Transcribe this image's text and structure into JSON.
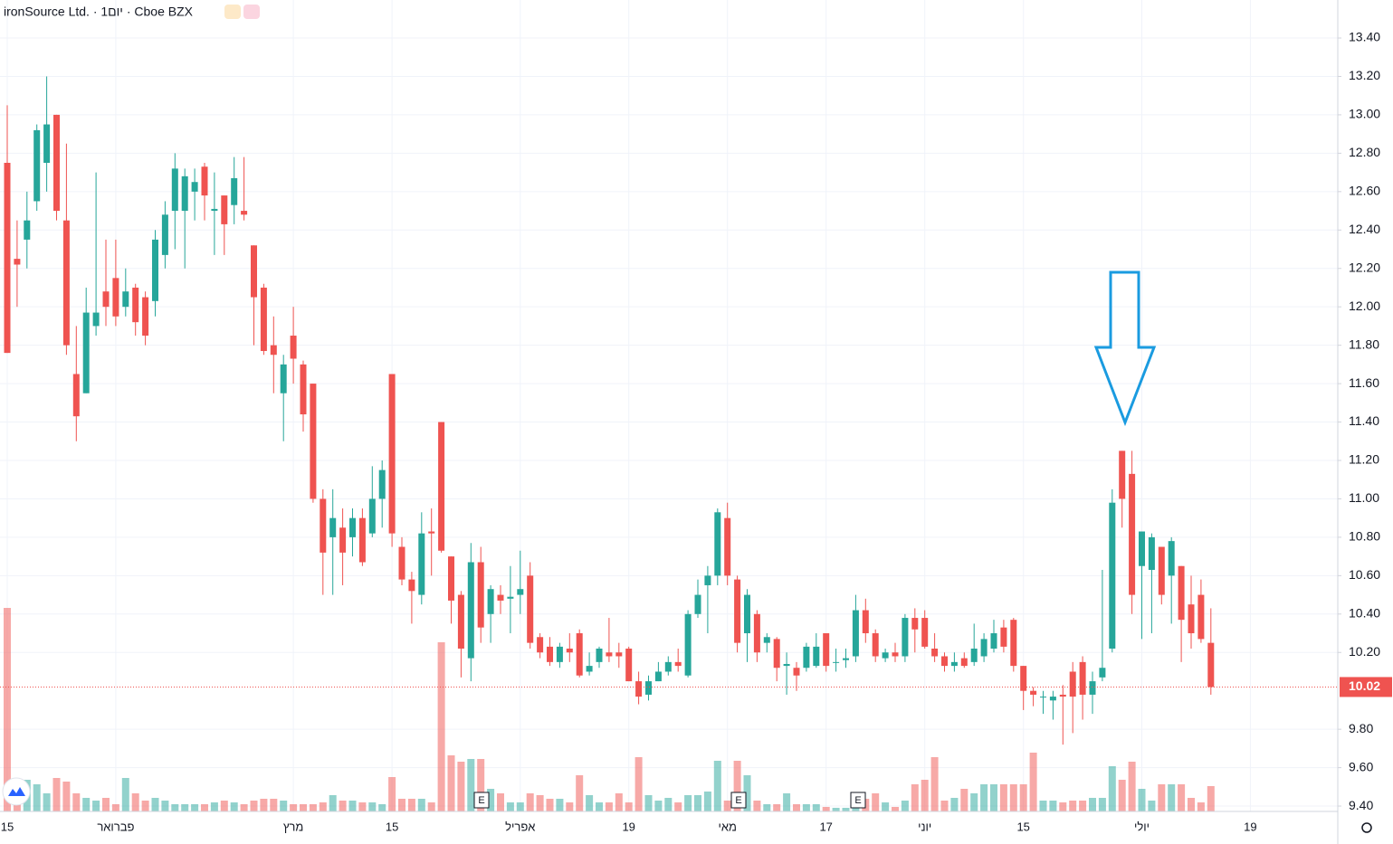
{
  "chart_data": {
    "type": "candlestick",
    "title": "ironSource Ltd. · 1יום · Cboe BZX",
    "up_color": "#26a69a",
    "down_color": "#ef5350",
    "grid": true,
    "ylim": [
      9.372,
      13.598
    ],
    "yticks": [
      {
        "value": 9.4,
        "label": "9.40"
      },
      {
        "value": 9.6,
        "label": "9.60"
      },
      {
        "value": 9.8,
        "label": "9.80"
      },
      {
        "value": 10.2,
        "label": "10.20"
      },
      {
        "value": 10.4,
        "label": "10.40"
      },
      {
        "value": 10.6,
        "label": "10.60"
      },
      {
        "value": 10.8,
        "label": "10.80"
      },
      {
        "value": 11.0,
        "label": "11.00"
      },
      {
        "value": 11.2,
        "label": "11.20"
      },
      {
        "value": 11.4,
        "label": "11.40"
      },
      {
        "value": 11.6,
        "label": "11.60"
      },
      {
        "value": 11.8,
        "label": "11.80"
      },
      {
        "value": 12.0,
        "label": "12.00"
      },
      {
        "value": 12.2,
        "label": "12.20"
      },
      {
        "value": 12.4,
        "label": "12.40"
      },
      {
        "value": 12.6,
        "label": "12.60"
      },
      {
        "value": 12.8,
        "label": "12.80"
      },
      {
        "value": 13.0,
        "label": "13.00"
      },
      {
        "value": 13.2,
        "label": "13.20"
      },
      {
        "value": 13.4,
        "label": "13.40"
      }
    ],
    "last_price": 10.02,
    "events": [
      "E",
      "E",
      "E"
    ],
    "categories": [
      "15",
      null,
      null,
      null,
      null,
      null,
      null,
      null,
      null,
      null,
      null,
      "פברואר",
      null,
      null,
      null,
      null,
      null,
      null,
      null,
      null,
      null,
      null,
      null,
      null,
      null,
      null,
      null,
      null,
      null,
      "מרץ",
      null,
      null,
      null,
      null,
      null,
      null,
      null,
      null,
      null,
      "15",
      null,
      null,
      null,
      null,
      null,
      null,
      null,
      null,
      null,
      null,
      null,
      null,
      "אפריל",
      null,
      null,
      null,
      null,
      null,
      null,
      null,
      null,
      null,
      null,
      "19",
      null,
      null,
      null,
      null,
      null,
      null,
      null,
      null,
      null,
      "מאי",
      null,
      null,
      null,
      null,
      null,
      null,
      null,
      null,
      null,
      "17",
      null,
      null,
      null,
      null,
      null,
      null,
      null,
      null,
      null,
      "יוני",
      null,
      null,
      null,
      null,
      null,
      null,
      null,
      null,
      null,
      "15",
      null,
      null,
      null,
      null,
      null,
      null,
      null,
      null,
      null,
      null,
      null,
      "יולי",
      null,
      null,
      null,
      null,
      null,
      null,
      null,
      null,
      null,
      null,
      "19"
    ],
    "open": [
      12.75,
      12.25,
      12.35,
      12.55,
      12.75,
      13.0,
      12.45,
      11.65,
      11.55,
      11.9,
      12.08,
      12.15,
      12.0,
      12.1,
      12.05,
      12.03,
      12.27,
      12.5,
      12.5,
      12.6,
      12.73,
      12.5,
      12.58,
      12.53,
      12.5,
      12.32,
      12.1,
      11.8,
      11.55,
      11.85,
      11.7,
      11.6,
      11.0,
      10.8,
      10.85,
      10.8,
      10.9,
      10.82,
      11.0,
      11.65,
      10.75,
      10.58,
      10.5,
      10.83,
      11.4,
      10.7,
      10.5,
      10.17,
      10.67,
      10.4,
      10.5,
      10.48,
      10.5,
      10.6,
      10.28,
      10.23,
      10.15,
      10.22,
      10.3,
      10.1,
      10.15,
      10.2,
      10.2,
      10.22,
      10.05,
      9.98,
      10.05,
      10.1,
      10.15,
      10.08,
      10.4,
      10.55,
      10.6,
      10.9,
      10.58,
      10.3,
      10.4,
      10.25,
      10.27,
      10.13,
      10.12,
      10.12,
      10.13,
      10.3,
      10.15,
      10.16,
      10.18,
      10.42,
      10.3,
      10.17,
      10.2,
      10.18,
      10.38,
      10.38,
      10.22,
      10.18,
      10.13,
      10.17,
      10.15,
      10.18,
      10.22,
      10.33,
      10.37,
      10.13,
      10.0,
      9.97,
      9.95,
      9.98,
      10.1,
      10.15,
      9.98,
      10.07,
      10.22,
      11.25,
      11.13,
      10.65,
      10.63,
      10.75,
      10.6,
      10.65,
      10.45,
      10.5,
      10.25,
      null,
      null,
      null,
      null
    ],
    "high": [
      13.05,
      12.45,
      12.6,
      12.95,
      13.2,
      13.0,
      12.85,
      11.9,
      12.1,
      12.7,
      12.35,
      12.35,
      12.2,
      12.12,
      12.08,
      12.4,
      12.55,
      12.8,
      12.72,
      12.72,
      12.75,
      12.7,
      12.58,
      12.78,
      12.78,
      12.32,
      12.12,
      11.95,
      11.75,
      12.0,
      11.72,
      11.6,
      11.05,
      11.05,
      10.95,
      10.95,
      10.95,
      11.17,
      11.2,
      11.65,
      10.8,
      10.62,
      10.93,
      10.95,
      11.4,
      10.7,
      10.52,
      10.77,
      10.75,
      10.55,
      10.55,
      10.65,
      10.73,
      10.67,
      10.3,
      10.28,
      10.25,
      10.3,
      10.32,
      10.2,
      10.23,
      10.38,
      10.25,
      10.23,
      10.1,
      10.08,
      10.15,
      10.18,
      10.22,
      10.42,
      10.58,
      10.65,
      10.95,
      10.98,
      10.6,
      10.53,
      10.42,
      10.3,
      10.28,
      10.2,
      10.15,
      10.25,
      10.3,
      10.3,
      10.22,
      10.22,
      10.5,
      10.48,
      10.32,
      10.22,
      10.25,
      10.4,
      10.43,
      10.42,
      10.3,
      10.2,
      10.2,
      10.2,
      10.35,
      10.3,
      10.37,
      10.37,
      10.38,
      10.13,
      10.02,
      10.0,
      10.0,
      10.03,
      10.15,
      10.18,
      10.1,
      10.63,
      11.05,
      11.25,
      11.25,
      10.83,
      10.82,
      10.75,
      10.8,
      10.65,
      10.6,
      10.58,
      10.43,
      null,
      null,
      null,
      null
    ],
    "low": [
      11.76,
      12.0,
      12.2,
      12.5,
      12.6,
      12.45,
      11.75,
      11.3,
      11.55,
      11.85,
      11.9,
      11.9,
      11.95,
      11.85,
      11.8,
      11.95,
      12.2,
      12.3,
      12.2,
      12.45,
      12.45,
      12.27,
      12.27,
      12.43,
      12.45,
      11.8,
      11.75,
      11.55,
      11.3,
      11.6,
      11.35,
      10.98,
      10.5,
      10.5,
      10.55,
      10.7,
      10.65,
      10.8,
      10.85,
      10.75,
      10.55,
      10.35,
      10.45,
      10.6,
      10.72,
      10.35,
      10.07,
      10.05,
      10.25,
      10.25,
      10.4,
      10.3,
      10.4,
      10.22,
      10.17,
      10.13,
      10.12,
      10.15,
      10.07,
      10.08,
      10.12,
      10.15,
      10.12,
      10.05,
      9.93,
      9.95,
      10.05,
      10.08,
      10.1,
      10.07,
      10.38,
      10.3,
      10.55,
      10.55,
      10.2,
      10.15,
      10.15,
      10.2,
      10.05,
      9.98,
      10.0,
      10.1,
      10.12,
      10.1,
      10.1,
      10.12,
      10.15,
      10.25,
      10.15,
      10.15,
      10.15,
      10.15,
      10.2,
      10.22,
      10.15,
      10.1,
      10.1,
      10.12,
      10.13,
      10.15,
      10.2,
      10.2,
      10.1,
      9.9,
      9.92,
      9.88,
      9.85,
      9.72,
      9.78,
      9.85,
      9.88,
      10.05,
      10.2,
      10.85,
      10.4,
      10.27,
      10.3,
      10.45,
      10.35,
      10.15,
      10.22,
      10.25,
      9.98,
      null,
      null,
      null,
      null
    ],
    "close": [
      11.76,
      12.22,
      12.45,
      12.92,
      12.95,
      12.5,
      11.8,
      11.43,
      11.97,
      11.97,
      12.0,
      11.95,
      12.08,
      11.92,
      11.85,
      12.35,
      12.48,
      12.72,
      12.68,
      12.65,
      12.58,
      12.51,
      12.43,
      12.67,
      12.48,
      12.05,
      11.77,
      11.75,
      11.7,
      11.73,
      11.44,
      11.0,
      10.72,
      10.9,
      10.72,
      10.9,
      10.67,
      11.0,
      11.15,
      10.82,
      10.58,
      10.52,
      10.82,
      10.82,
      10.73,
      10.47,
      10.22,
      10.67,
      10.33,
      10.53,
      10.47,
      10.49,
      10.53,
      10.25,
      10.2,
      10.15,
      10.23,
      10.2,
      10.08,
      10.13,
      10.22,
      10.18,
      10.18,
      10.05,
      9.97,
      10.05,
      10.1,
      10.15,
      10.13,
      10.4,
      10.5,
      10.6,
      10.93,
      10.6,
      10.25,
      10.5,
      10.2,
      10.28,
      10.12,
      10.14,
      10.08,
      10.23,
      10.23,
      10.13,
      10.15,
      10.17,
      10.42,
      10.3,
      10.18,
      10.2,
      10.18,
      10.38,
      10.32,
      10.23,
      10.18,
      10.13,
      10.15,
      10.13,
      10.22,
      10.27,
      10.3,
      10.23,
      10.13,
      10.0,
      9.98,
      9.97,
      9.97,
      9.97,
      9.97,
      9.98,
      10.05,
      10.12,
      10.98,
      11.0,
      10.5,
      10.83,
      10.8,
      10.5,
      10.78,
      10.37,
      10.3,
      10.27,
      10.02,
      null,
      null,
      null,
      null
    ],
    "volume": [
      225,
      30,
      35,
      30,
      20,
      37,
      33,
      20,
      15,
      12,
      15,
      8,
      37,
      20,
      12,
      15,
      12,
      8,
      8,
      8,
      8,
      10,
      12,
      10,
      8,
      12,
      14,
      14,
      12,
      8,
      8,
      8,
      10,
      18,
      12,
      12,
      10,
      10,
      8,
      38,
      14,
      14,
      14,
      10,
      187,
      62,
      55,
      58,
      58,
      25,
      20,
      10,
      10,
      20,
      18,
      14,
      14,
      10,
      40,
      18,
      10,
      10,
      20,
      10,
      60,
      18,
      12,
      15,
      10,
      18,
      18,
      22,
      56,
      12,
      56,
      40,
      12,
      8,
      8,
      20,
      8,
      8,
      8,
      5,
      4,
      4,
      5,
      14,
      20,
      10,
      5,
      12,
      30,
      35,
      60,
      12,
      15,
      25,
      20,
      30,
      30,
      30,
      30,
      30,
      65,
      12,
      12,
      10,
      12,
      12,
      15,
      15,
      50,
      35,
      55,
      25,
      12,
      30,
      30,
      30,
      15,
      10,
      28,
      null,
      null,
      null,
      null
    ]
  }
}
